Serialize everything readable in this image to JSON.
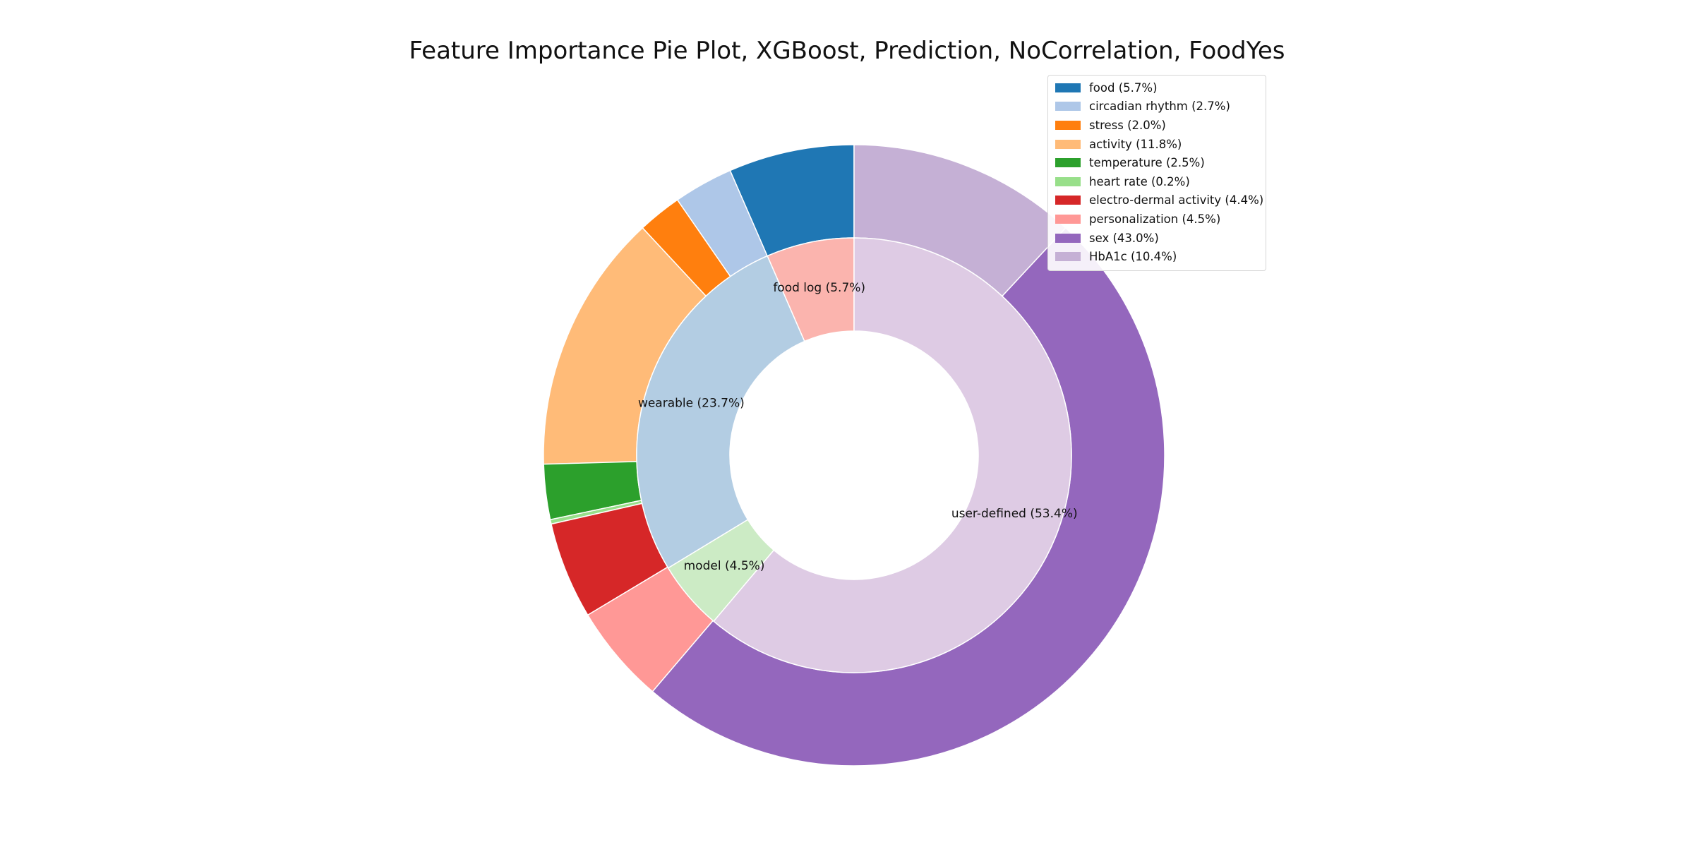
{
  "chart_data": {
    "type": "pie",
    "variant": "nested-donut",
    "title": "Feature Importance Pie Plot, XGBoost, Prediction, NoCorrelation, FoodYes",
    "start_angle_deg": 90,
    "direction": "counterclockwise",
    "legend_placement": "top-right",
    "outer": [
      {
        "name": "food",
        "value": 5.7,
        "label": "food (5.7%)",
        "color": "#1f77b4"
      },
      {
        "name": "circadian rhythm",
        "value": 2.7,
        "label": "circadian rhythm (2.7%)",
        "color": "#aec7e8"
      },
      {
        "name": "stress",
        "value": 2.0,
        "label": "stress (2.0%)",
        "color": "#ff7f0e"
      },
      {
        "name": "activity",
        "value": 11.8,
        "label": "activity (11.8%)",
        "color": "#ffbb78"
      },
      {
        "name": "temperature",
        "value": 2.5,
        "label": "temperature (2.5%)",
        "color": "#2ca02c"
      },
      {
        "name": "heart rate",
        "value": 0.2,
        "label": "heart rate (0.2%)",
        "color": "#98df8a"
      },
      {
        "name": "electro-dermal activity",
        "value": 4.4,
        "label": "electro-dermal activity (4.4%)",
        "color": "#d62728"
      },
      {
        "name": "personalization",
        "value": 4.5,
        "label": "personalization (4.5%)",
        "color": "#ff9896"
      },
      {
        "name": "sex",
        "value": 43.0,
        "label": "sex (43.0%)",
        "color": "#9467bd"
      },
      {
        "name": "HbA1c",
        "value": 10.4,
        "label": "HbA1c (10.4%)",
        "color": "#c5b0d5"
      }
    ],
    "inner": [
      {
        "name": "food log",
        "value": 5.7,
        "label": "food log (5.7%)",
        "color": "#fbb4ae"
      },
      {
        "name": "wearable",
        "value": 23.7,
        "label": "wearable (23.7%)",
        "color": "#b3cde3"
      },
      {
        "name": "model",
        "value": 4.5,
        "label": "model (4.5%)",
        "color": "#ccebc5"
      },
      {
        "name": "user-defined",
        "value": 53.4,
        "label": "user-defined (53.4%)",
        "color": "#decbe4"
      }
    ]
  }
}
